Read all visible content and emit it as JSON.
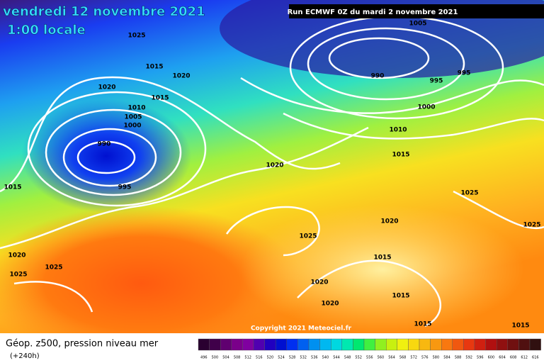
{
  "header": {
    "date": "vendredi 12 novembre 2021",
    "time": "1:00 locale",
    "run": "Run ECMWF 0Z du mardi 2 novembre 2021"
  },
  "copyright": "Copyright 2021 Meteociel.fr",
  "legend": {
    "title": "Géop. z500, pression niveau mer",
    "lead": "(+240h)",
    "scale": [
      496,
      500,
      504,
      508,
      512,
      516,
      520,
      524,
      528,
      532,
      536,
      540,
      544,
      548,
      552,
      556,
      560,
      564,
      568,
      572,
      576,
      580,
      584,
      588,
      592,
      596,
      600,
      604,
      608,
      612,
      616
    ]
  },
  "isobar_labels": [
    "1025",
    "1015",
    "1020",
    "1020",
    "1015",
    "1010",
    "1005",
    "1000",
    "990",
    "995",
    "1015",
    "1020",
    "1020",
    "1025",
    "1025",
    "1025",
    "1020",
    "1015",
    "1020",
    "1020",
    "1015",
    "1015",
    "1015",
    "1005",
    "990",
    "995",
    "995",
    "1000",
    "1010",
    "1015",
    "1025",
    "1025"
  ]
}
